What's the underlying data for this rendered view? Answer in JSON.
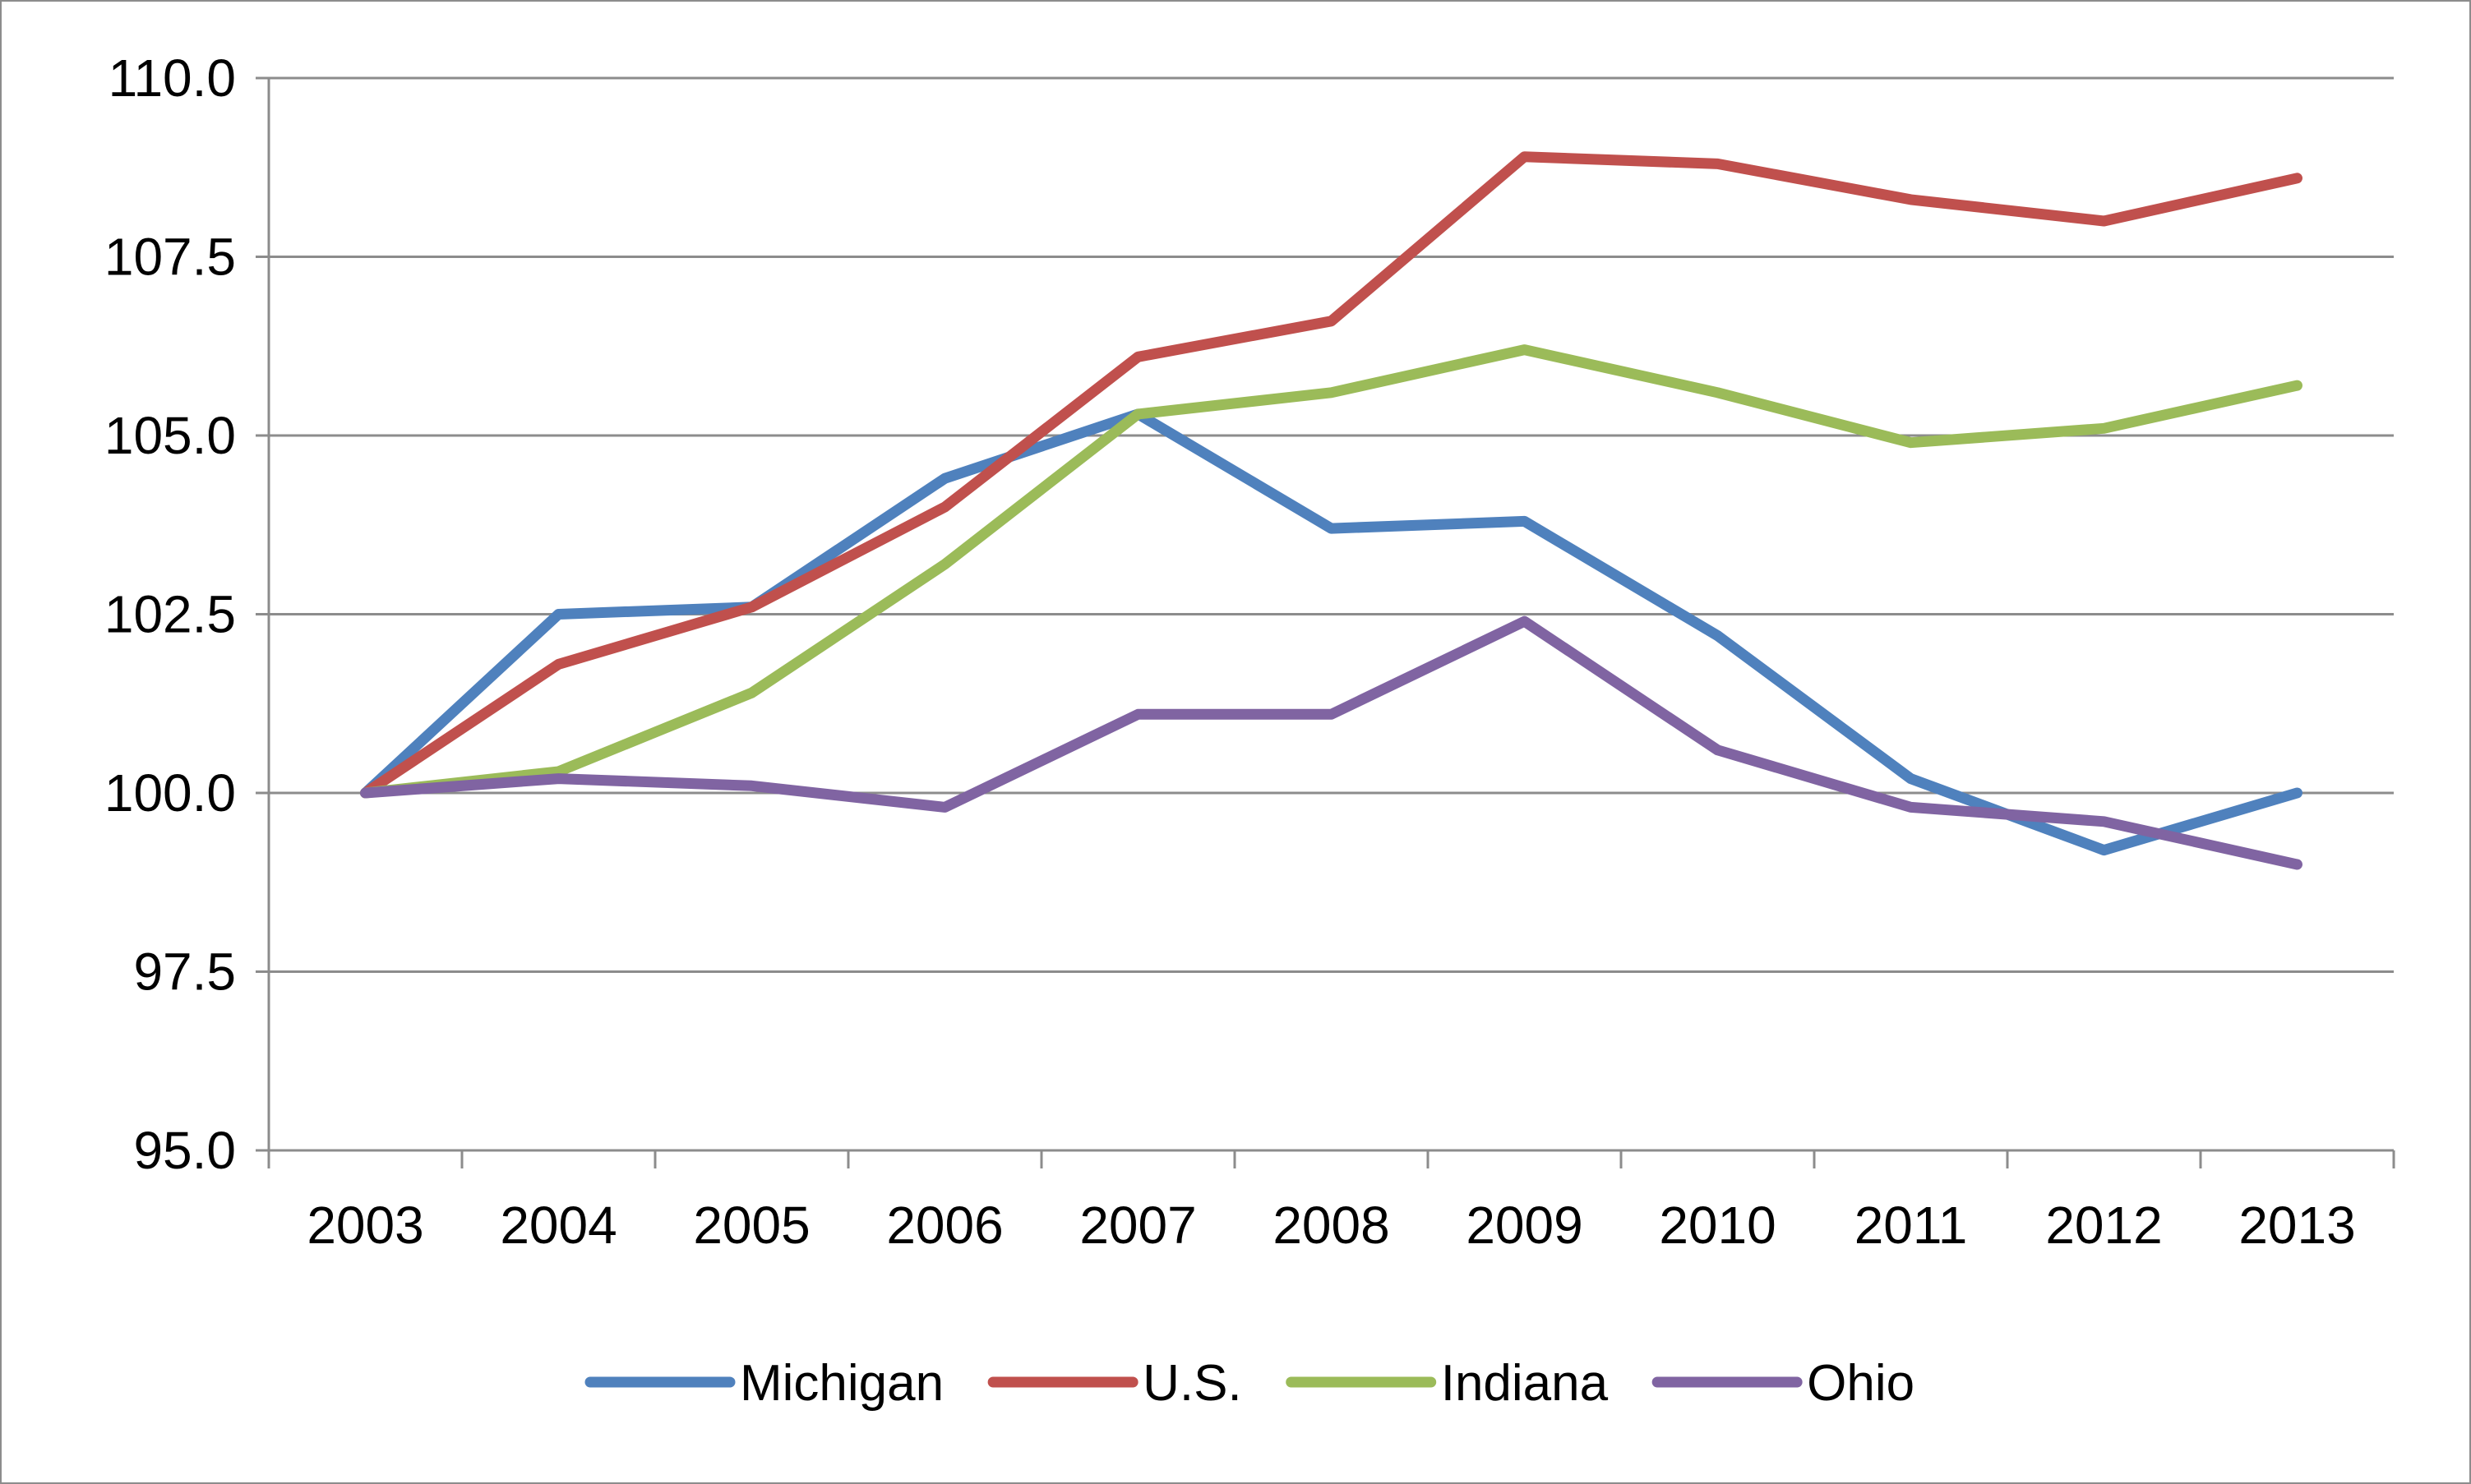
{
  "chart_data": {
    "type": "line",
    "categories": [
      "2003",
      "2004",
      "2005",
      "2006",
      "2007",
      "2008",
      "2009",
      "2010",
      "2011",
      "2012",
      "2013"
    ],
    "series": [
      {
        "name": "Michigan",
        "color": "#4f81bd",
        "values": [
          100.0,
          102.5,
          102.6,
          104.4,
          105.3,
          103.7,
          103.8,
          102.2,
          100.2,
          99.2,
          100.0
        ]
      },
      {
        "name": "U.S.",
        "color": "#c0504d",
        "values": [
          100.0,
          101.8,
          102.6,
          104.0,
          106.1,
          106.6,
          108.9,
          108.8,
          108.3,
          108.0,
          108.6
        ]
      },
      {
        "name": "Indiana",
        "color": "#9bbb59",
        "values": [
          100.0,
          100.3,
          101.4,
          103.2,
          105.3,
          105.6,
          106.2,
          105.6,
          104.9,
          105.1,
          105.7
        ]
      },
      {
        "name": "Ohio",
        "color": "#8064a2",
        "values": [
          100.0,
          100.2,
          100.1,
          99.8,
          101.1,
          101.1,
          102.4,
          100.6,
          99.8,
          99.6,
          99.0
        ]
      }
    ],
    "ylim": [
      95.0,
      110.0
    ],
    "y_ticks": [
      "95.0",
      "97.5",
      "100.0",
      "102.5",
      "105.0",
      "107.5",
      "110.0"
    ],
    "grid": true,
    "legend_position": "bottom"
  }
}
